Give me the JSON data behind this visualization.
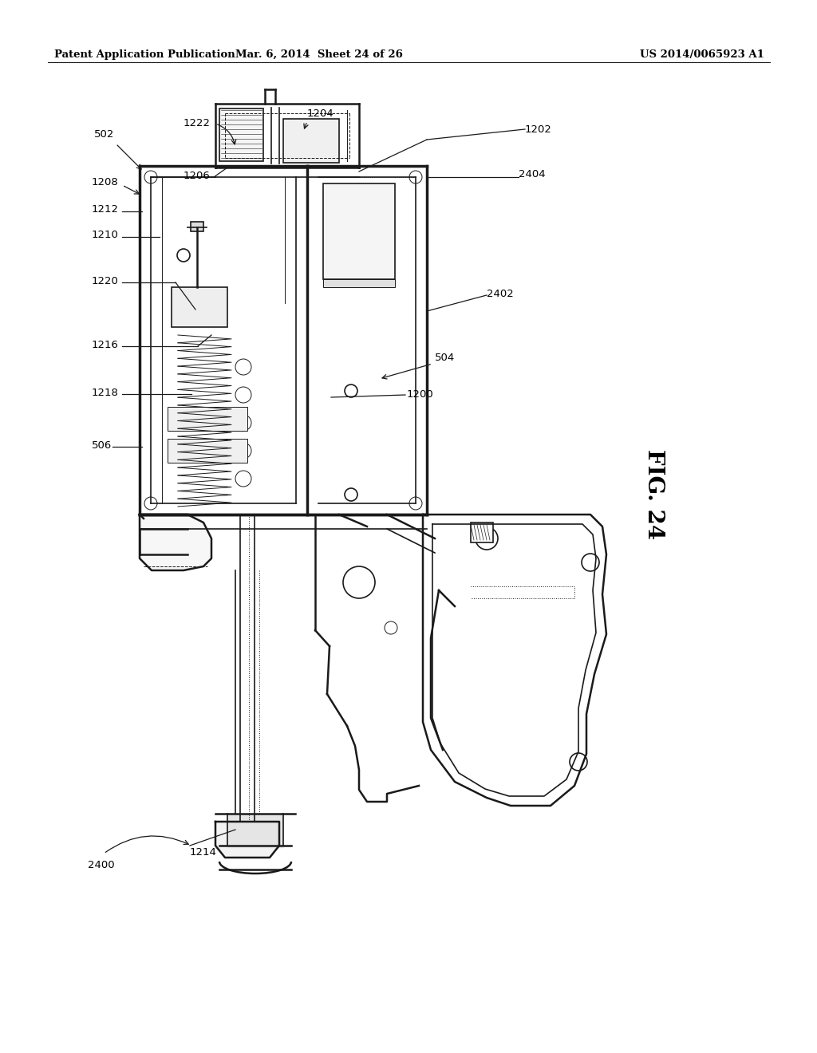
{
  "bg_color": "#ffffff",
  "header_left": "Patent Application Publication",
  "header_center": "Mar. 6, 2014  Sheet 24 of 26",
  "header_right": "US 2014/0065923 A1",
  "fig_label": "FIG. 24",
  "line_color": "#1a1a1a",
  "text_color": "#000000"
}
